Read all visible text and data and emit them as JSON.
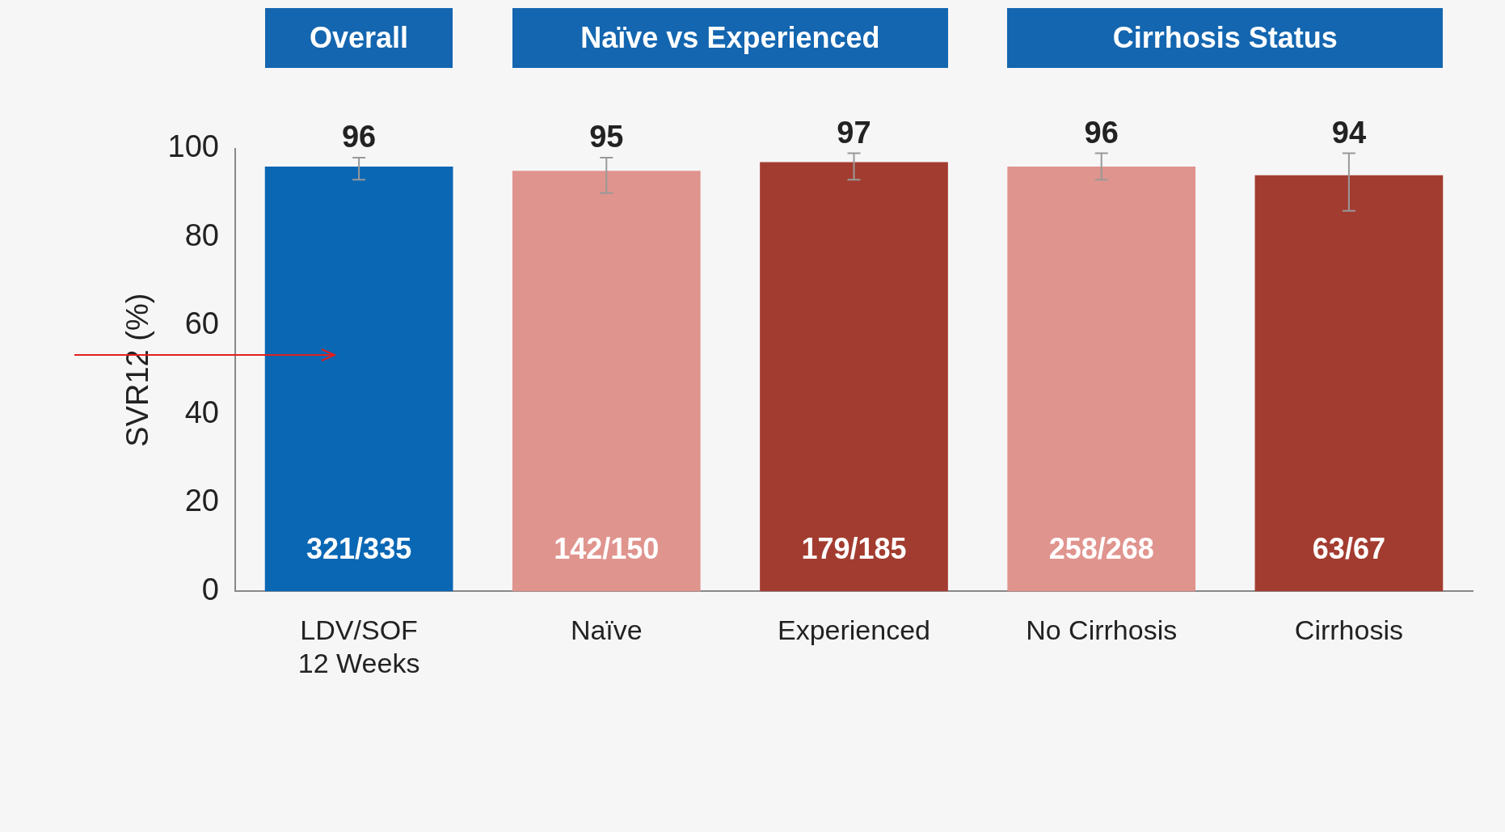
{
  "chart_data": {
    "type": "bar",
    "ylabel": "SVR12 (%)",
    "categories": [
      "LDV/SOF\n12 Weeks",
      "Naïve",
      "Experienced",
      "No Cirrhosis",
      "Cirrhosis"
    ],
    "values": [
      96,
      95,
      97,
      96,
      94
    ],
    "colors": [
      "#0a67b4",
      "#e0948e",
      "#a33c30",
      "#e0948e",
      "#a33c30"
    ],
    "errors": [
      [
        93,
        98
      ],
      [
        90,
        98
      ],
      [
        93,
        99
      ],
      [
        93,
        99
      ],
      [
        86,
        99
      ]
    ],
    "data_labels": true,
    "ylim": [
      0,
      100
    ],
    "yticks": [
      0,
      20,
      40,
      60,
      80,
      100
    ],
    "grid": false,
    "legend": false,
    "annotations": [
      "Overall",
      "Naïve vs Experienced",
      "Cirrhosis Status",
      "321/335",
      "142/150",
      "179/185",
      "258/268",
      "63/67"
    ]
  }
}
